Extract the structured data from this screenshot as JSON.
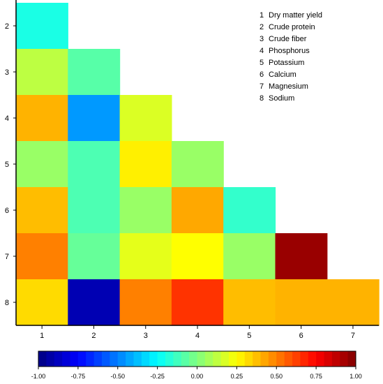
{
  "chart_data": {
    "type": "heatmap",
    "title": "",
    "xlabel": "",
    "ylabel": "",
    "x_categories": [
      "1",
      "2",
      "3",
      "4",
      "5",
      "6",
      "7"
    ],
    "y_categories": [
      "2",
      "3",
      "4",
      "5",
      "6",
      "7",
      "8"
    ],
    "cells": [
      [
        -0.2
      ],
      [
        0.12,
        -0.08
      ],
      [
        0.4,
        -0.45,
        0.18
      ],
      [
        0.05,
        -0.1,
        0.28,
        0.05
      ],
      [
        0.38,
        -0.1,
        0.05,
        0.42,
        -0.15
      ],
      [
        0.5,
        -0.05,
        0.2,
        0.25,
        0.05,
        0.95
      ],
      [
        0.32,
        -0.9,
        0.5,
        0.65,
        0.38,
        0.4,
        0.4
      ]
    ],
    "legend": {
      "position": "top-right",
      "entries": [
        {
          "num": "1",
          "name": "Dry matter yield"
        },
        {
          "num": "2",
          "name": "Crude protein"
        },
        {
          "num": "3",
          "name": "Crude fiber"
        },
        {
          "num": "4",
          "name": "Phosphorus"
        },
        {
          "num": "5",
          "name": "Potassium"
        },
        {
          "num": "6",
          "name": "Calcium"
        },
        {
          "num": "7",
          "name": "Magnesium"
        },
        {
          "num": "8",
          "name": "Sodium"
        }
      ]
    },
    "colorbar": {
      "min": -1.0,
      "max": 1.0,
      "ticks": [
        "-1.00",
        "-0.75",
        "-0.50",
        "-0.25",
        "0.00",
        "0.25",
        "0.50",
        "0.75",
        "1.00"
      ],
      "colormap": "jet"
    },
    "grid": false
  }
}
